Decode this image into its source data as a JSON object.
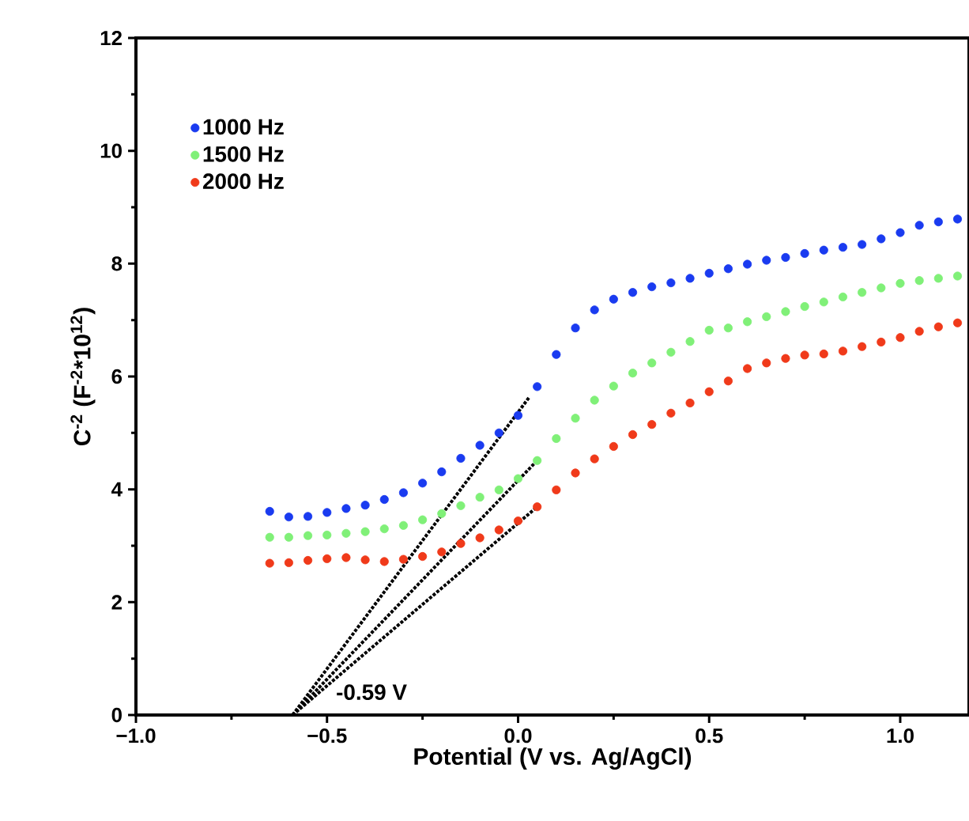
{
  "chart_data": {
    "type": "scatter",
    "xlabel": "Potential (V vs. Ag/AgCl)",
    "ylabel": "C$^{-2}$ (F$^{-2}$*10$^{12}$)",
    "xlim": [
      -1.0,
      1.18
    ],
    "ylim": [
      0,
      12
    ],
    "xticks": [
      {
        "value": -1.0,
        "label": "−1.0"
      },
      {
        "value": -0.5,
        "label": "−0.5"
      },
      {
        "value": 0.0,
        "label": "0.0"
      },
      {
        "value": 0.5,
        "label": "0.5"
      },
      {
        "value": 1.0,
        "label": "1.0"
      }
    ],
    "yticks": [
      0,
      2,
      4,
      6,
      8,
      10,
      12
    ],
    "grid": false,
    "legend": "top left",
    "x": [
      -0.65,
      -0.6,
      -0.55,
      -0.5,
      -0.45,
      -0.4,
      -0.35,
      -0.3,
      -0.25,
      -0.2,
      -0.15,
      -0.1,
      -0.05,
      0.0,
      0.05,
      0.1,
      0.15,
      0.2,
      0.25,
      0.3,
      0.35,
      0.4,
      0.45,
      0.5,
      0.55,
      0.6,
      0.65,
      0.7,
      0.75,
      0.8,
      0.85,
      0.9,
      0.95,
      1.0,
      1.05,
      1.1,
      1.15
    ],
    "series": [
      {
        "name": "1000 Hz",
        "marker": "circle",
        "color": "#1a3bf0",
        "values": [
          3.61,
          3.51,
          3.52,
          3.59,
          3.66,
          3.72,
          3.82,
          3.94,
          4.11,
          4.31,
          4.55,
          4.78,
          5.0,
          5.31,
          5.82,
          6.39,
          6.86,
          7.18,
          7.37,
          7.49,
          7.59,
          7.66,
          7.74,
          7.83,
          7.91,
          7.99,
          8.06,
          8.11,
          8.18,
          8.24,
          8.29,
          8.34,
          8.44,
          8.55,
          8.68,
          8.74,
          8.79
        ]
      },
      {
        "name": "1500 Hz",
        "marker": "circle",
        "color": "#80f078",
        "values": [
          3.15,
          3.15,
          3.18,
          3.19,
          3.22,
          3.25,
          3.3,
          3.36,
          3.46,
          3.57,
          3.71,
          3.86,
          3.99,
          4.19,
          4.51,
          4.9,
          5.26,
          5.58,
          5.83,
          6.06,
          6.24,
          6.43,
          6.62,
          6.82,
          6.86,
          6.97,
          7.06,
          7.15,
          7.24,
          7.32,
          7.41,
          7.49,
          7.57,
          7.65,
          7.7,
          7.74,
          7.78
        ]
      },
      {
        "name": "2000 Hz",
        "marker": "circle",
        "color": "#f03a1a",
        "values": [
          2.69,
          2.7,
          2.74,
          2.77,
          2.79,
          2.75,
          2.72,
          2.76,
          2.81,
          2.89,
          3.04,
          3.14,
          3.28,
          3.44,
          3.69,
          3.99,
          4.29,
          4.54,
          4.76,
          4.97,
          5.15,
          5.35,
          5.53,
          5.73,
          5.92,
          6.14,
          6.24,
          6.32,
          6.38,
          6.4,
          6.45,
          6.53,
          6.61,
          6.69,
          6.8,
          6.88,
          6.95
        ]
      },
      {
        "type": "line",
        "marker": "none",
        "line_style": "dotted",
        "color": "#000000",
        "x": [
          -0.59,
          0.03
        ],
        "values": [
          0,
          5.64
        ]
      },
      {
        "type": "line",
        "marker": "none",
        "line_style": "dotted",
        "color": "#000000",
        "x": [
          -0.59,
          0.05
        ],
        "values": [
          0,
          4.51
        ]
      },
      {
        "type": "line",
        "marker": "none",
        "line_style": "dotted",
        "color": "#000000",
        "x": [
          -0.59,
          0.05
        ],
        "values": [
          0,
          3.69
        ]
      }
    ],
    "annotations": [
      {
        "text": "-0.59 V",
        "x": -0.59,
        "y": 0
      }
    ]
  }
}
